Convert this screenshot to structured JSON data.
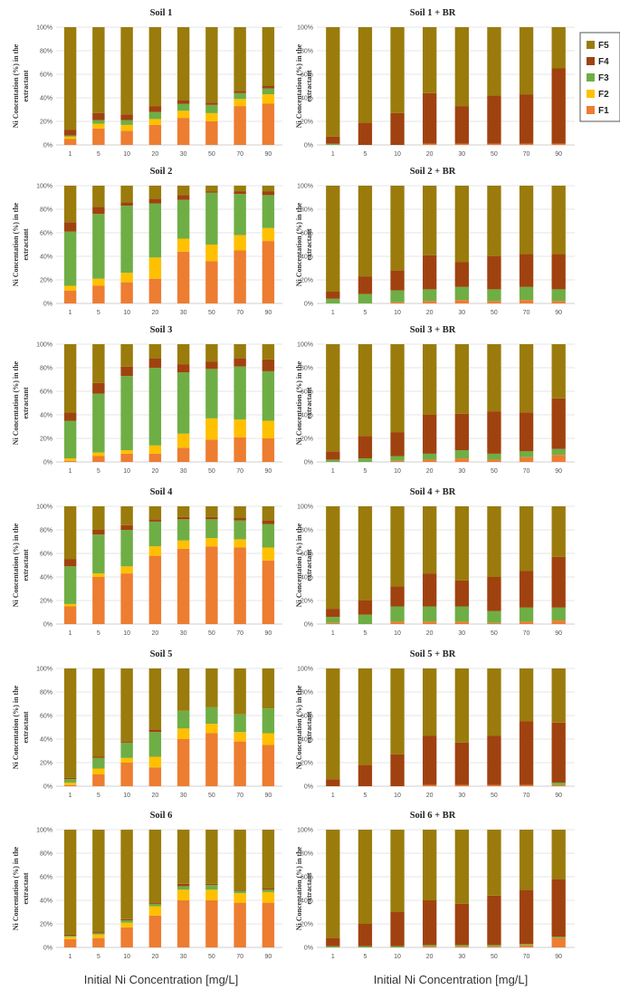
{
  "x_axis_label": "Initial Ni Concentration [mg/L]",
  "y_axis_label_lines": [
    "Ni Concentation (%) in the",
    "extractant"
  ],
  "y_tick_labels": [
    "0%",
    "20%",
    "40%",
    "60%",
    "80%",
    "100%"
  ],
  "legend": [
    {
      "name": "F5",
      "color": "#9a7b0c"
    },
    {
      "name": "F4",
      "color": "#a0420f"
    },
    {
      "name": "F3",
      "color": "#6fae45"
    },
    {
      "name": "F2",
      "color": "#ffc000"
    },
    {
      "name": "F1",
      "color": "#ed7d31"
    }
  ],
  "chart_data": [
    {
      "type": "bar",
      "stacked": true,
      "title": "Soil 1",
      "categories": [
        "1",
        "5",
        "10",
        "20",
        "30",
        "50",
        "70",
        "90"
      ],
      "ylim": [
        0,
        100
      ],
      "ylabel": "Ni Concentation (%) in the extractant",
      "xlabel": "Initial Ni Concentration [mg/L]",
      "series": [
        {
          "name": "F1",
          "values": [
            5,
            14,
            12,
            17,
            23,
            20,
            33,
            35
          ]
        },
        {
          "name": "F2",
          "values": [
            2,
            4,
            5,
            5,
            6,
            7,
            6,
            8
          ]
        },
        {
          "name": "F3",
          "values": [
            1,
            3,
            4,
            6,
            6,
            7,
            5,
            5
          ]
        },
        {
          "name": "F4",
          "values": [
            5,
            6,
            5,
            5,
            3,
            2,
            2,
            2
          ]
        },
        {
          "name": "F5",
          "values": [
            87,
            73,
            74,
            67,
            62,
            64,
            54,
            50
          ]
        }
      ]
    },
    {
      "type": "bar",
      "stacked": true,
      "title": "Soil 1 + BR",
      "categories": [
        "1",
        "5",
        "10",
        "20",
        "30",
        "50",
        "70",
        "90"
      ],
      "ylim": [
        0,
        100
      ],
      "ylabel": "Ni Concentation (%) in the extractant",
      "xlabel": "Initial Ni Concentration [mg/L]",
      "series": [
        {
          "name": "F1",
          "values": [
            0,
            0,
            0,
            1,
            1,
            1,
            1,
            1
          ]
        },
        {
          "name": "F2",
          "values": [
            0,
            0,
            0,
            0,
            0,
            0,
            0,
            0
          ]
        },
        {
          "name": "F3",
          "values": [
            1,
            0,
            0,
            0,
            0,
            0,
            0,
            0
          ]
        },
        {
          "name": "F4",
          "values": [
            6,
            19,
            27,
            43,
            32,
            41,
            42,
            64
          ]
        },
        {
          "name": "F5",
          "values": [
            93,
            81,
            73,
            56,
            67,
            58,
            57,
            35
          ]
        }
      ]
    },
    {
      "type": "bar",
      "stacked": true,
      "title": "Soil 2",
      "categories": [
        "1",
        "5",
        "10",
        "20",
        "30",
        "50",
        "70",
        "90"
      ],
      "ylim": [
        0,
        100
      ],
      "ylabel": "Ni Concentation (%) in the extractant",
      "xlabel": "Initial Ni Concentration [mg/L]",
      "series": [
        {
          "name": "F1",
          "values": [
            11,
            15,
            18,
            21,
            44,
            36,
            45,
            53
          ]
        },
        {
          "name": "F2",
          "values": [
            4,
            6,
            8,
            18,
            11,
            14,
            13,
            11
          ]
        },
        {
          "name": "F3",
          "values": [
            46,
            55,
            57,
            46,
            33,
            44,
            35,
            28
          ]
        },
        {
          "name": "F4",
          "values": [
            8,
            6,
            3,
            4,
            4,
            1,
            2,
            3
          ]
        },
        {
          "name": "F5",
          "values": [
            31,
            18,
            14,
            11,
            8,
            5,
            5,
            5
          ]
        }
      ]
    },
    {
      "type": "bar",
      "stacked": true,
      "title": "Soil 2 + BR",
      "categories": [
        "1",
        "5",
        "10",
        "20",
        "30",
        "50",
        "70",
        "90"
      ],
      "ylim": [
        0,
        100
      ],
      "ylabel": "Ni Concentation (%) in the extractant",
      "xlabel": "Initial Ni Concentration [mg/L]",
      "series": [
        {
          "name": "F1",
          "values": [
            0,
            0,
            1,
            2,
            3,
            2,
            3,
            2
          ]
        },
        {
          "name": "F2",
          "values": [
            0,
            0,
            0,
            0,
            0,
            0,
            0,
            0
          ]
        },
        {
          "name": "F3",
          "values": [
            4,
            8,
            10,
            10,
            11,
            10,
            11,
            10
          ]
        },
        {
          "name": "F4",
          "values": [
            6,
            15,
            17,
            29,
            21,
            28,
            28,
            30
          ]
        },
        {
          "name": "F5",
          "values": [
            90,
            77,
            72,
            59,
            65,
            60,
            58,
            58
          ]
        }
      ]
    },
    {
      "type": "bar",
      "stacked": true,
      "title": "Soil 3",
      "categories": [
        "1",
        "5",
        "10",
        "20",
        "30",
        "50",
        "70",
        "90"
      ],
      "ylim": [
        0,
        100
      ],
      "ylabel": "Ni Concentation (%) in the extractant",
      "xlabel": "Initial Ni Concentration [mg/L]",
      "series": [
        {
          "name": "F1",
          "values": [
            1,
            5,
            7,
            7,
            12,
            19,
            21,
            20
          ]
        },
        {
          "name": "F2",
          "values": [
            2,
            3,
            3,
            7,
            12,
            18,
            15,
            15
          ]
        },
        {
          "name": "F3",
          "values": [
            32,
            50,
            63,
            66,
            52,
            42,
            45,
            42
          ]
        },
        {
          "name": "F4",
          "values": [
            7,
            9,
            8,
            8,
            7,
            6,
            7,
            10
          ]
        },
        {
          "name": "F5",
          "values": [
            58,
            33,
            19,
            12,
            17,
            15,
            12,
            13
          ]
        }
      ]
    },
    {
      "type": "bar",
      "stacked": true,
      "title": "Soil 3 + BR",
      "categories": [
        "1",
        "5",
        "10",
        "20",
        "30",
        "50",
        "70",
        "90"
      ],
      "ylim": [
        0,
        100
      ],
      "ylabel": "Ni Concentation (%) in the extractant",
      "xlabel": "Initial Ni Concentration [mg/L]",
      "series": [
        {
          "name": "F1",
          "values": [
            0,
            0,
            1,
            2,
            3,
            2,
            4,
            6
          ]
        },
        {
          "name": "F2",
          "values": [
            0,
            0,
            0,
            0,
            0,
            0,
            0,
            0
          ]
        },
        {
          "name": "F3",
          "values": [
            2,
            3,
            4,
            5,
            7,
            5,
            5,
            5
          ]
        },
        {
          "name": "F4",
          "values": [
            7,
            19,
            20,
            33,
            31,
            36,
            33,
            43
          ]
        },
        {
          "name": "F5",
          "values": [
            91,
            78,
            75,
            60,
            59,
            57,
            58,
            46
          ]
        }
      ]
    },
    {
      "type": "bar",
      "stacked": true,
      "title": "Soil 4",
      "categories": [
        "1",
        "5",
        "10",
        "20",
        "30",
        "50",
        "70",
        "90"
      ],
      "ylim": [
        0,
        100
      ],
      "ylabel": "Ni Concentation (%) in the extractant",
      "xlabel": "Initial Ni Concentration [mg/L]",
      "series": [
        {
          "name": "F1",
          "values": [
            15,
            40,
            43,
            58,
            64,
            66,
            65,
            54
          ]
        },
        {
          "name": "F2",
          "values": [
            2,
            3,
            6,
            8,
            7,
            7,
            7,
            11
          ]
        },
        {
          "name": "F3",
          "values": [
            32,
            33,
            31,
            21,
            18,
            16,
            16,
            20
          ]
        },
        {
          "name": "F4",
          "values": [
            6,
            4,
            4,
            2,
            2,
            2,
            2,
            3
          ]
        },
        {
          "name": "F5",
          "values": [
            45,
            20,
            16,
            11,
            9,
            9,
            10,
            12
          ]
        }
      ]
    },
    {
      "type": "bar",
      "stacked": true,
      "title": "Soil 4 + BR",
      "categories": [
        "1",
        "5",
        "10",
        "20",
        "30",
        "50",
        "70",
        "90"
      ],
      "ylim": [
        0,
        100
      ],
      "ylabel": "Ni Concentation (%) in the extractant",
      "xlabel": "Initial Ni Concentration [mg/L]",
      "series": [
        {
          "name": "F1",
          "values": [
            1,
            0,
            2,
            2,
            2,
            1,
            2,
            3
          ]
        },
        {
          "name": "F2",
          "values": [
            0,
            0,
            0,
            0,
            0,
            0,
            0,
            0
          ]
        },
        {
          "name": "F3",
          "values": [
            5,
            8,
            13,
            13,
            13,
            10,
            12,
            11
          ]
        },
        {
          "name": "F4",
          "values": [
            7,
            12,
            17,
            28,
            22,
            29,
            31,
            43
          ]
        },
        {
          "name": "F5",
          "values": [
            87,
            80,
            68,
            57,
            63,
            60,
            55,
            43
          ]
        }
      ]
    },
    {
      "type": "bar",
      "stacked": true,
      "title": "Soil 5",
      "categories": [
        "1",
        "5",
        "10",
        "20",
        "30",
        "50",
        "70",
        "90"
      ],
      "ylim": [
        0,
        100
      ],
      "ylabel": "Ni Concentation (%) in the extractant",
      "xlabel": "Initial Ni Concentration [mg/L]",
      "series": [
        {
          "name": "F1",
          "values": [
            1,
            10,
            20,
            16,
            40,
            45,
            38,
            35
          ]
        },
        {
          "name": "F2",
          "values": [
            2,
            5,
            4,
            9,
            9,
            8,
            8,
            10
          ]
        },
        {
          "name": "F3",
          "values": [
            3,
            9,
            13,
            21,
            15,
            14,
            15,
            21
          ]
        },
        {
          "name": "F4",
          "values": [
            1,
            1,
            1,
            2,
            0,
            0,
            0,
            0
          ]
        },
        {
          "name": "F5",
          "values": [
            93,
            75,
            62,
            52,
            36,
            33,
            39,
            34
          ]
        }
      ]
    },
    {
      "type": "bar",
      "stacked": true,
      "title": "Soil 5 + BR",
      "categories": [
        "1",
        "5",
        "10",
        "20",
        "30",
        "50",
        "70",
        "90"
      ],
      "ylim": [
        0,
        100
      ],
      "ylabel": "Ni Concentation (%) in the extractant",
      "xlabel": "Initial Ni Concentration [mg/L]",
      "series": [
        {
          "name": "F1",
          "values": [
            0,
            0,
            0,
            1,
            1,
            1,
            1,
            1
          ]
        },
        {
          "name": "F2",
          "values": [
            0,
            0,
            0,
            0,
            0,
            0,
            0,
            0
          ]
        },
        {
          "name": "F3",
          "values": [
            0,
            0,
            0,
            0,
            0,
            0,
            0,
            2
          ]
        },
        {
          "name": "F4",
          "values": [
            6,
            18,
            27,
            42,
            36,
            42,
            54,
            51
          ]
        },
        {
          "name": "F5",
          "values": [
            94,
            82,
            73,
            57,
            63,
            57,
            45,
            46
          ]
        }
      ]
    },
    {
      "type": "bar",
      "stacked": true,
      "title": "Soil 6",
      "categories": [
        "1",
        "5",
        "10",
        "20",
        "30",
        "50",
        "70",
        "90"
      ],
      "ylim": [
        0,
        100
      ],
      "ylabel": "Ni Concentation (%) in the extractant",
      "xlabel": "Initial Ni Concentration [mg/L]",
      "series": [
        {
          "name": "F1",
          "values": [
            7,
            8,
            17,
            27,
            40,
            40,
            38,
            38
          ]
        },
        {
          "name": "F2",
          "values": [
            2,
            3,
            4,
            8,
            9,
            9,
            8,
            9
          ]
        },
        {
          "name": "F3",
          "values": [
            1,
            1,
            2,
            2,
            3,
            4,
            2,
            2
          ]
        },
        {
          "name": "F4",
          "values": [
            1,
            1,
            1,
            1,
            2,
            1,
            1,
            1
          ]
        },
        {
          "name": "F5",
          "values": [
            89,
            87,
            76,
            62,
            46,
            46,
            51,
            50
          ]
        }
      ]
    },
    {
      "type": "bar",
      "stacked": true,
      "title": "Soil 6 + BR",
      "categories": [
        "1",
        "5",
        "10",
        "20",
        "30",
        "50",
        "70",
        "90"
      ],
      "ylim": [
        0,
        100
      ],
      "ylabel": "Ni Concentation (%) in the extractant",
      "xlabel": "Initial Ni Concentration [mg/L]",
      "series": [
        {
          "name": "F1",
          "values": [
            0,
            0,
            0,
            1,
            1,
            1,
            2,
            8
          ]
        },
        {
          "name": "F2",
          "values": [
            0,
            0,
            0,
            0,
            0,
            0,
            0,
            0
          ]
        },
        {
          "name": "F3",
          "values": [
            1,
            1,
            1,
            1,
            1,
            1,
            1,
            1
          ]
        },
        {
          "name": "F4",
          "values": [
            7,
            19,
            29,
            38,
            35,
            42,
            46,
            49
          ]
        },
        {
          "name": "F5",
          "values": [
            92,
            80,
            70,
            60,
            63,
            56,
            51,
            42
          ]
        }
      ]
    }
  ]
}
